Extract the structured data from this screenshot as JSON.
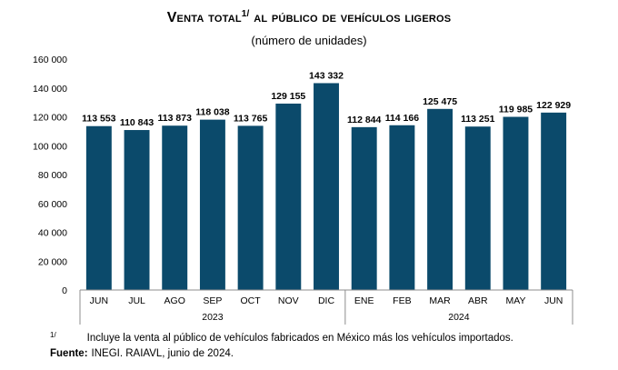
{
  "title": {
    "main": "Venta total",
    "sup": "1/",
    "rest": "al público de vehículos ligeros",
    "subtitle": "(número de unidades)"
  },
  "footnote": {
    "marker": "1/",
    "text": "Incluye la venta al público de vehículos fabricados en México más los vehículos importados."
  },
  "source": {
    "label": "Fuente:",
    "text": "INEGI. RAIAVL, junio de 2024."
  },
  "colors": {
    "bar": "#0b4a6b",
    "axis": "#8c8c8c",
    "text": "#000000"
  },
  "chart_data": {
    "type": "bar",
    "title": "Venta total al público de vehículos ligeros",
    "ylabel": "número de unidades",
    "categories": [
      "JUN",
      "JUL",
      "AGO",
      "SEP",
      "OCT",
      "NOV",
      "DIC",
      "ENE",
      "FEB",
      "MAR",
      "ABR",
      "MAY",
      "JUN"
    ],
    "values": [
      113553,
      110843,
      113873,
      118038,
      113765,
      129155,
      143332,
      112844,
      114166,
      125475,
      113251,
      119985,
      122929
    ],
    "data_labels": [
      "113 553",
      "110 843",
      "113 873",
      "118 038",
      "113 765",
      "129 155",
      "143 332",
      "112 844",
      "114 166",
      "125 475",
      "113 251",
      "119 985",
      "122 929"
    ],
    "groups": [
      {
        "label": "2023",
        "start": 0,
        "end": 6
      },
      {
        "label": "2024",
        "start": 7,
        "end": 12
      }
    ],
    "ylim": [
      0,
      160000
    ],
    "yticks": [
      0,
      20000,
      40000,
      60000,
      80000,
      100000,
      120000,
      140000,
      160000
    ],
    "ytick_labels": [
      "0",
      "20 000",
      "40 000",
      "60 000",
      "80 000",
      "100 000",
      "120 000",
      "140 000",
      "160 000"
    ],
    "grid": false,
    "legend": "none"
  }
}
